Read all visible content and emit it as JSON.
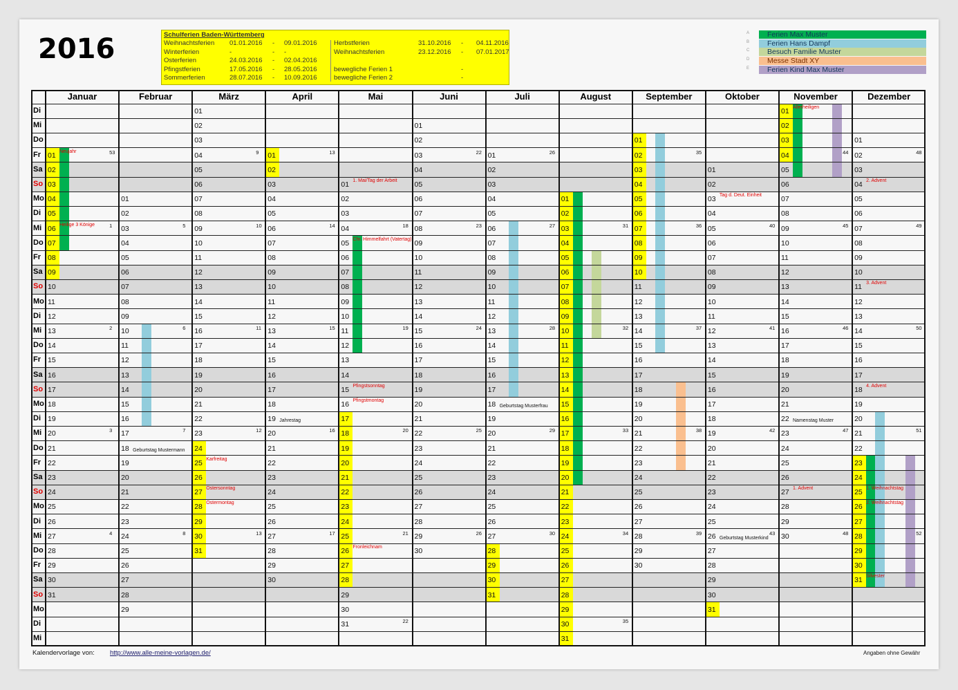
{
  "year": "2016",
  "school_holidays": {
    "title": "Schulferien Baden-Württemberg",
    "left": [
      {
        "name": "Weihnachtsferien",
        "from": "01.01.2016",
        "sep": "-",
        "to": "09.01.2016"
      },
      {
        "name": "Winterferien",
        "from": "-",
        "sep": "-",
        "to": "-"
      },
      {
        "name": "Osterferien",
        "from": "24.03.2016",
        "sep": "-",
        "to": "02.04.2016"
      },
      {
        "name": "Pfingstferien",
        "from": "17.05.2016",
        "sep": "-",
        "to": "28.05.2016"
      },
      {
        "name": "Sommerferien",
        "from": "28.07.2016",
        "sep": "-",
        "to": "10.09.2016"
      }
    ],
    "right": [
      {
        "name": "Herbstferien",
        "from": "31.10.2016",
        "sep": "-",
        "to": "04.11.2016"
      },
      {
        "name": "Weihnachtsferien",
        "from": "23.12.2016",
        "sep": "-",
        "to": "07.01.2017"
      },
      {
        "name": "",
        "from": "",
        "sep": "",
        "to": ""
      },
      {
        "name": "bewegliche Ferien 1",
        "from": "",
        "sep": "-",
        "to": ""
      },
      {
        "name": "bewegliche Ferien 2",
        "from": "",
        "sep": "-",
        "to": ""
      }
    ]
  },
  "legend": [
    {
      "letter": "A",
      "label": "Ferien Max Muster",
      "color": "#00b050"
    },
    {
      "letter": "B",
      "label": "Ferien Hans Dampf",
      "color": "#92cddc"
    },
    {
      "letter": "C",
      "label": "Besuch Familie Muster",
      "color": "#c4d79b"
    },
    {
      "letter": "D",
      "label": "Messe Stadt XY",
      "color": "#fabf8f"
    },
    {
      "letter": "E",
      "label": "Ferien Kind Max Muster",
      "color": "#b1a0c7"
    }
  ],
  "weekdays": [
    "Di",
    "Mi",
    "Do",
    "Fr",
    "Sa",
    "So",
    "Mo",
    "Di",
    "Mi",
    "Do",
    "Fr",
    "Sa",
    "So",
    "Mo",
    "Di",
    "Mi",
    "Do",
    "Fr",
    "Sa",
    "So",
    "Mo",
    "Di",
    "Mi",
    "Do",
    "Fr",
    "Sa",
    "So",
    "Mo",
    "Di",
    "Mi",
    "Do",
    "Fr",
    "Sa",
    "So",
    "Mo",
    "Di",
    "Mi"
  ],
  "colors": {
    "holiday_text": "#e00000",
    "school_holiday": "#ffff00",
    "weekend_row": "#d9d9d9",
    "sunday_label": "#e00000"
  },
  "months": [
    {
      "name": "Januar",
      "days": 31,
      "first_weekday": "Fr",
      "kw": {
        "1": "53",
        "6": "1",
        "13": "2",
        "20": "3",
        "27": "4"
      }
    },
    {
      "name": "Februar",
      "days": 29,
      "first_weekday": "Mo",
      "kw": {
        "3": "5",
        "10": "6",
        "17": "7",
        "24": "8"
      }
    },
    {
      "name": "März",
      "days": 31,
      "first_weekday": "Di",
      "kw": {
        "4": "9",
        "9": "10",
        "16": "11",
        "23": "12",
        "30": "13"
      }
    },
    {
      "name": "April",
      "days": 30,
      "first_weekday": "Fr",
      "kw": {
        "1": "13",
        "6": "14",
        "13": "15",
        "20": "16",
        "27": "17"
      }
    },
    {
      "name": "Mai",
      "days": 31,
      "first_weekday": "So",
      "kw": {
        "4": "18",
        "11": "19",
        "18": "20",
        "25": "21",
        "31": "22"
      }
    },
    {
      "name": "Juni",
      "days": 30,
      "first_weekday": "Mi",
      "kw": {
        "3": "22",
        "8": "23",
        "15": "24",
        "22": "25",
        "29": "26"
      }
    },
    {
      "name": "Juli",
      "days": 31,
      "first_weekday": "Fr",
      "kw": {
        "1": "26",
        "6": "27",
        "13": "28",
        "20": "29",
        "27": "30"
      }
    },
    {
      "name": "August",
      "days": 31,
      "first_weekday": "Mo",
      "kw": {
        "3": "31",
        "10": "32",
        "17": "33",
        "24": "34",
        "30": "35"
      }
    },
    {
      "name": "September",
      "days": 30,
      "first_weekday": "Do",
      "kw": {
        "2": "35",
        "7": "36",
        "14": "37",
        "21": "38",
        "28": "39"
      }
    },
    {
      "name": "Oktober",
      "days": 31,
      "first_weekday": "Sa",
      "kw": {
        "5": "40",
        "12": "41",
        "19": "42",
        "26": "43"
      }
    },
    {
      "name": "November",
      "days": 30,
      "first_weekday": "Di",
      "kw": {
        "4": "44",
        "9": "45",
        "16": "46",
        "23": "47",
        "30": "48"
      }
    },
    {
      "name": "Dezember",
      "days": 31,
      "first_weekday": "Do",
      "kw": {
        "2": "48",
        "7": "49",
        "14": "50",
        "21": "51",
        "28": "52"
      }
    }
  ],
  "school_holiday_days": [
    {
      "month": 1,
      "from": 1,
      "to": 9
    },
    {
      "month": 3,
      "from": 24,
      "to": 31
    },
    {
      "month": 4,
      "from": 1,
      "to": 2
    },
    {
      "month": 5,
      "from": 17,
      "to": 28
    },
    {
      "month": 7,
      "from": 28,
      "to": 31
    },
    {
      "month": 8,
      "from": 1,
      "to": 31
    },
    {
      "month": 9,
      "from": 1,
      "to": 10
    },
    {
      "month": 10,
      "from": 31,
      "to": 31
    },
    {
      "month": 11,
      "from": 1,
      "to": 4
    },
    {
      "month": 12,
      "from": 23,
      "to": 31
    }
  ],
  "events": [
    {
      "category": "A",
      "month": 1,
      "from": 1,
      "to": 7
    },
    {
      "category": "A",
      "month": 5,
      "from": 5,
      "to": 12
    },
    {
      "category": "A",
      "month": 8,
      "from": 1,
      "to": 20
    },
    {
      "category": "A",
      "month": 11,
      "from": 1,
      "to": 5
    },
    {
      "category": "A",
      "month": 12,
      "from": 23,
      "to": 31
    },
    {
      "category": "B",
      "month": 2,
      "from": 10,
      "to": 16
    },
    {
      "category": "B",
      "month": 7,
      "from": 6,
      "to": 17
    },
    {
      "category": "B",
      "month": 9,
      "from": 1,
      "to": 15
    },
    {
      "category": "B",
      "month": 12,
      "from": 20,
      "to": 31
    },
    {
      "category": "C",
      "month": 8,
      "from": 5,
      "to": 10
    },
    {
      "category": "D",
      "month": 9,
      "from": 18,
      "to": 23
    },
    {
      "category": "E",
      "month": 11,
      "from": 1,
      "to": 5
    },
    {
      "category": "E",
      "month": 12,
      "from": 23,
      "to": 31
    }
  ],
  "day_labels": [
    {
      "month": 1,
      "day": 1,
      "text": "Neujahr",
      "type": "holiday"
    },
    {
      "month": 1,
      "day": 6,
      "text": "Heilige 3 Könige",
      "type": "holiday"
    },
    {
      "month": 2,
      "day": 18,
      "text": "Geburtstag Mustermann",
      "type": "personal"
    },
    {
      "month": 3,
      "day": 25,
      "text": "Karfreitag",
      "type": "holiday"
    },
    {
      "month": 3,
      "day": 27,
      "text": "Ostersonntag",
      "type": "holiday"
    },
    {
      "month": 3,
      "day": 28,
      "text": "Ostermontag",
      "type": "holiday"
    },
    {
      "month": 4,
      "day": 19,
      "text": "Jahrestag",
      "type": "personal"
    },
    {
      "month": 5,
      "day": 1,
      "text": "1. Mai/Tag der Arbeit",
      "type": "holiday"
    },
    {
      "month": 5,
      "day": 5,
      "text": "Chr. Himmelfahrt (Vatertag)",
      "type": "holiday"
    },
    {
      "month": 5,
      "day": 15,
      "text": "Pfingstsonntag",
      "type": "holiday"
    },
    {
      "month": 5,
      "day": 16,
      "text": "Pfingstmontag",
      "type": "holiday"
    },
    {
      "month": 5,
      "day": 26,
      "text": "Fronleichnam",
      "type": "holiday"
    },
    {
      "month": 7,
      "day": 18,
      "text": "Geburtstag Musterfrau",
      "type": "personal"
    },
    {
      "month": 10,
      "day": 3,
      "text": "Tag d. Deut. Einheit",
      "type": "holiday"
    },
    {
      "month": 10,
      "day": 26,
      "text": "Geburtstag Musterkind",
      "type": "personal"
    },
    {
      "month": 11,
      "day": 1,
      "text": "Allerheiligen",
      "type": "holiday"
    },
    {
      "month": 11,
      "day": 22,
      "text": "Namenstag Muster",
      "type": "personal"
    },
    {
      "month": 11,
      "day": 27,
      "text": "1. Advent",
      "type": "holiday"
    },
    {
      "month": 12,
      "day": 4,
      "text": "2. Advent",
      "type": "holiday"
    },
    {
      "month": 12,
      "day": 11,
      "text": "3. Advent",
      "type": "holiday"
    },
    {
      "month": 12,
      "day": 18,
      "text": "4. Advent",
      "type": "holiday"
    },
    {
      "month": 12,
      "day": 25,
      "text": "1. Weihnachtstag",
      "type": "holiday"
    },
    {
      "month": 12,
      "day": 26,
      "text": "2. Weihnachtstag",
      "type": "holiday"
    },
    {
      "month": 12,
      "day": 31,
      "text": "Silvester",
      "type": "holiday"
    }
  ],
  "footer": {
    "source_label": "Kalendervorlage von:",
    "source_link": "http://www.alle-meine-vorlagen.de/",
    "disclaimer": "Angaben ohne Gewähr"
  }
}
